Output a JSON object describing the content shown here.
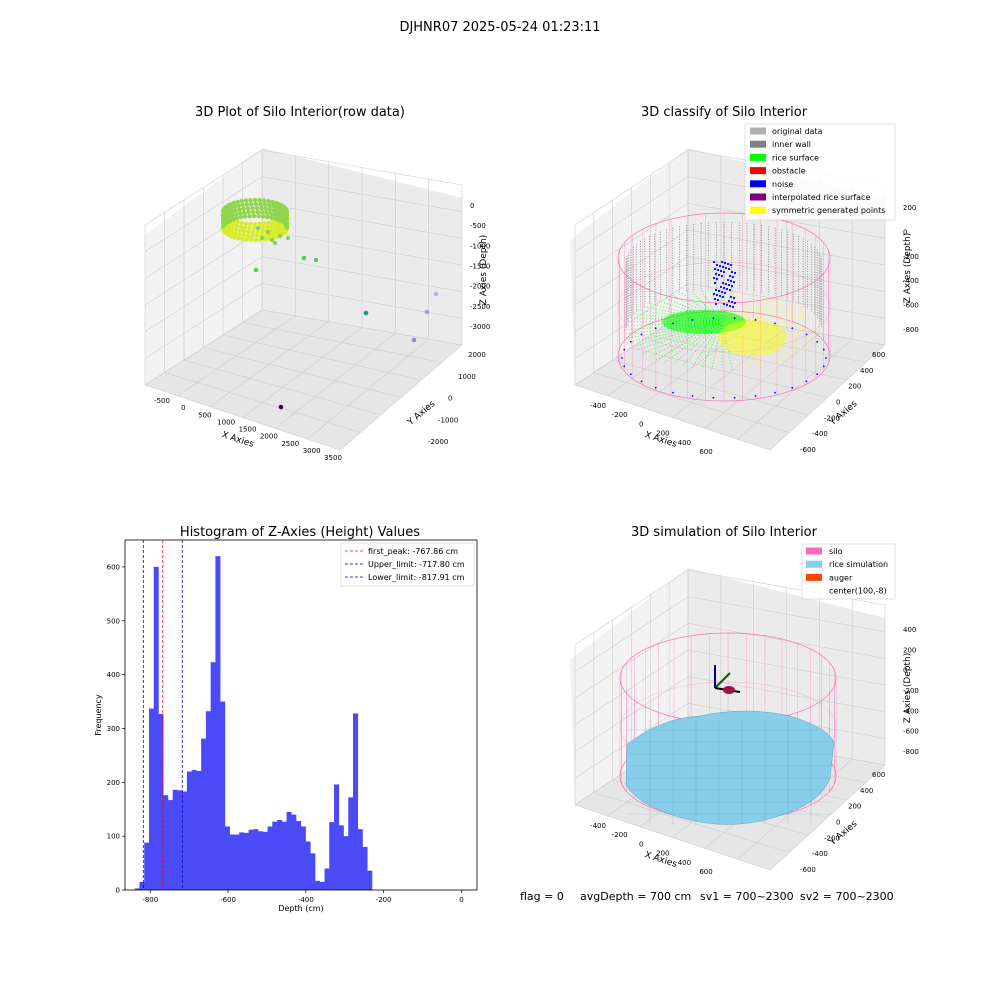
{
  "suptitle": "DJHNR07 2025-05-24 01:23:11",
  "colors": {
    "hist_bar": "#4a4af7",
    "first_peak": "#ff0000",
    "limits": "#0000cc",
    "original_data": "#b0b0b0",
    "inner_wall": "#808080",
    "rice_surface": "#00ff00",
    "obstacle": "#ff0000",
    "noise": "#0000ff",
    "interpolated_rice_surface": "#800080",
    "symmetric_generated_points": "#ffff00",
    "silo": "#ff69b4",
    "rice_simulation": "#87ceeb",
    "auger": "#ff4500"
  },
  "chart_data": [
    {
      "type": "scatter",
      "title": "3D Plot of Silo Interior(row data)",
      "xlabel": "X Axies",
      "ylabel": "Y Axies",
      "zlabel": "Z Axies (Depth)",
      "x_ticks": [
        "-500",
        "0",
        "500",
        "1000",
        "1500",
        "2000",
        "2500",
        "3000",
        "3500"
      ],
      "y_ticks": [
        "-2000",
        "-1000",
        "0",
        "1000",
        "2000"
      ],
      "z_ticks": [
        "0",
        "-500",
        "-1000",
        "-1500",
        "-2000",
        "-2500",
        "-3000"
      ],
      "outliers": [
        {
          "x": 600,
          "y": 200,
          "z": -1400
        },
        {
          "x": 800,
          "y": 400,
          "z": -1300
        },
        {
          "x": 900,
          "y": 600,
          "z": -1350
        },
        {
          "x": 1800,
          "y": 400,
          "z": -2400
        },
        {
          "x": 2700,
          "y": 1200,
          "z": -2200
        },
        {
          "x": 2900,
          "y": 800,
          "z": -2500
        },
        {
          "x": 2600,
          "y": 600,
          "z": -3100
        },
        {
          "x": 2300,
          "y": -1200,
          "z": -3300
        }
      ]
    },
    {
      "type": "scatter",
      "title": "3D classify of Silo Interior",
      "xlabel": "X Axies",
      "ylabel": "Y Axies",
      "zlabel": "Z Axies (Depth)",
      "x_ticks": [
        "-400",
        "-200",
        "0",
        "200",
        "400",
        "600"
      ],
      "y_ticks": [
        "-600",
        "-400",
        "-200",
        "0",
        "200",
        "400",
        "600"
      ],
      "z_ticks": [
        "200",
        "0",
        "-200",
        "-400",
        "-600",
        "-800"
      ],
      "legend": [
        {
          "label": "original data",
          "color_key": "original_data"
        },
        {
          "label": "inner wall",
          "color_key": "inner_wall"
        },
        {
          "label": "rice surface",
          "color_key": "rice_surface"
        },
        {
          "label": "obstacle",
          "color_key": "obstacle"
        },
        {
          "label": "noise",
          "color_key": "noise"
        },
        {
          "label": "interpolated rice surface",
          "color_key": "interpolated_rice_surface"
        },
        {
          "label": "symmetric generated points",
          "color_key": "symmetric_generated_points"
        }
      ],
      "legend_loc": "upper right"
    },
    {
      "type": "bar",
      "title": "Histogram of Z-Axies (Height) Values",
      "xlabel": "Depth (cm)",
      "ylabel": "Frequency",
      "xlim": [
        -865,
        40
      ],
      "ylim": [
        0,
        650
      ],
      "x_ticks": [
        -800,
        -600,
        -400,
        -200,
        0
      ],
      "y_ticks": [
        0,
        100,
        200,
        300,
        400,
        500,
        600
      ],
      "bin_start": -840,
      "bin_width": 12.2,
      "values": [
        3,
        15,
        88,
        337,
        600,
        327,
        176,
        167,
        186,
        185,
        183,
        220,
        223,
        221,
        281,
        332,
        423,
        620,
        350,
        118,
        103,
        103,
        107,
        106,
        112,
        113,
        109,
        108,
        118,
        127,
        130,
        127,
        145,
        140,
        128,
        118,
        90,
        68,
        17,
        15,
        40,
        126,
        196,
        120,
        100,
        172,
        328,
        113,
        80,
        36
      ],
      "vlines": [
        {
          "x": -767.86,
          "label": "first_peak: -767.86 cm",
          "color_key": "first_peak"
        },
        {
          "x": -717.8,
          "label": "Upper_limit: -717.80 cm",
          "color_key": "limits"
        },
        {
          "x": -817.91,
          "label": "Lower_limit: -817.91 cm",
          "color_key": "limits"
        }
      ],
      "legend_loc": "upper right"
    },
    {
      "type": "area",
      "title": "3D simulation of Silo Interior",
      "xlabel": "X Axies",
      "ylabel": "Y Axies",
      "zlabel": "Z Axies (Depth)",
      "x_ticks": [
        "-400",
        "-200",
        "0",
        "200",
        "400",
        "600"
      ],
      "y_ticks": [
        "-600",
        "-400",
        "-200",
        "0",
        "200",
        "400",
        "600"
      ],
      "z_ticks": [
        "400",
        "200",
        "0",
        "-200",
        "-400",
        "-600",
        "-800"
      ],
      "legend": [
        {
          "label": "silo",
          "color_key": "silo"
        },
        {
          "label": "rice simulation",
          "color_key": "rice_simulation"
        },
        {
          "label": "auger",
          "color_key": "auger"
        },
        {
          "label": "center(100,-8)",
          "color_key": ""
        }
      ],
      "legend_loc": "upper right"
    }
  ],
  "footer": {
    "flag": "flag = 0",
    "avg_depth": "avgDepth = 700 cm",
    "sv1": "sv1 = 700~2300",
    "sv2": "sv2 = 700~2300"
  }
}
